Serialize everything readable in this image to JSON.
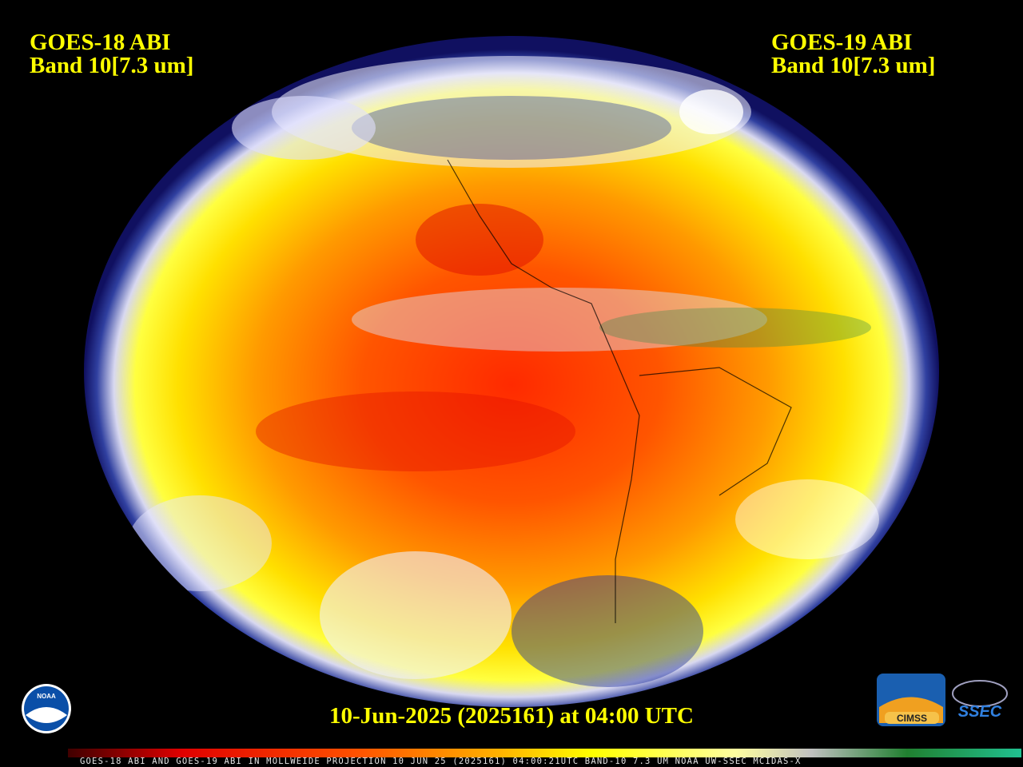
{
  "header": {
    "left": {
      "line1": "GOES-18 ABI",
      "line2": "Band 10[7.3 um]"
    },
    "right": {
      "line1": "GOES-19 ABI",
      "line2": "Band 10[7.3 um]"
    }
  },
  "timestamp": "10-Jun-2025 (2025161) at 04:00 UTC",
  "footer": "GOES-18 ABI AND GOES-19 ABI IN MOLLWEIDE PROJECTION 10 JUN 25 (2025161) 04:00:21UTC BAND-10 7.3 UM NOAA UW-SSEC MCIDAS-X",
  "logos": {
    "noaa": "NOAA",
    "cimss": "CIMSS",
    "ssec": "SSEC"
  }
}
